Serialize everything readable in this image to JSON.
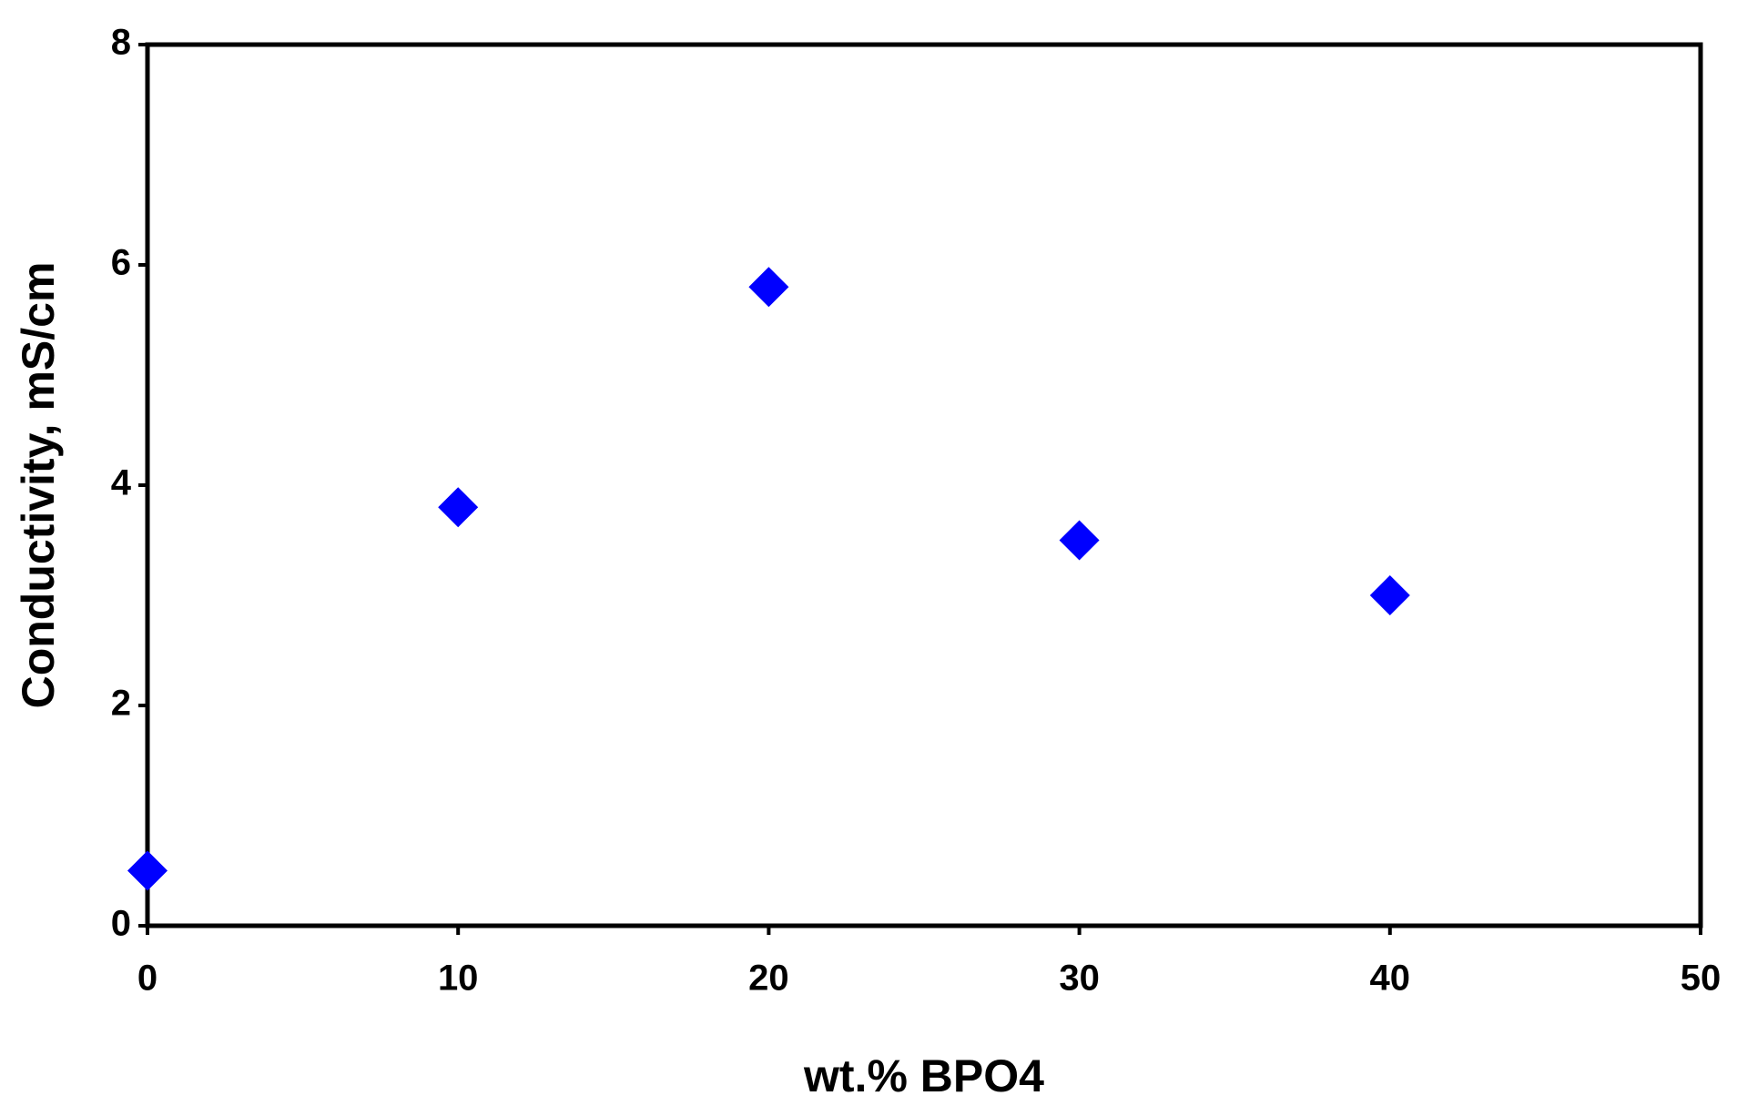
{
  "chart_data": {
    "type": "scatter",
    "x_label": "wt.% BPO4",
    "y_label": "Conductivity, mS/cm",
    "series": [
      {
        "color": "#0000ff",
        "x": [
          0,
          10,
          20,
          30,
          40
        ],
        "values": [
          0.5,
          3.8,
          5.8,
          3.5,
          3.0
        ]
      }
    ],
    "xlim": [
      0,
      50
    ],
    "xticks": [
      0,
      10,
      20,
      30,
      40,
      50
    ],
    "ylim": [
      0,
      8
    ],
    "yticks": [
      0,
      2,
      4,
      6,
      8
    ]
  }
}
